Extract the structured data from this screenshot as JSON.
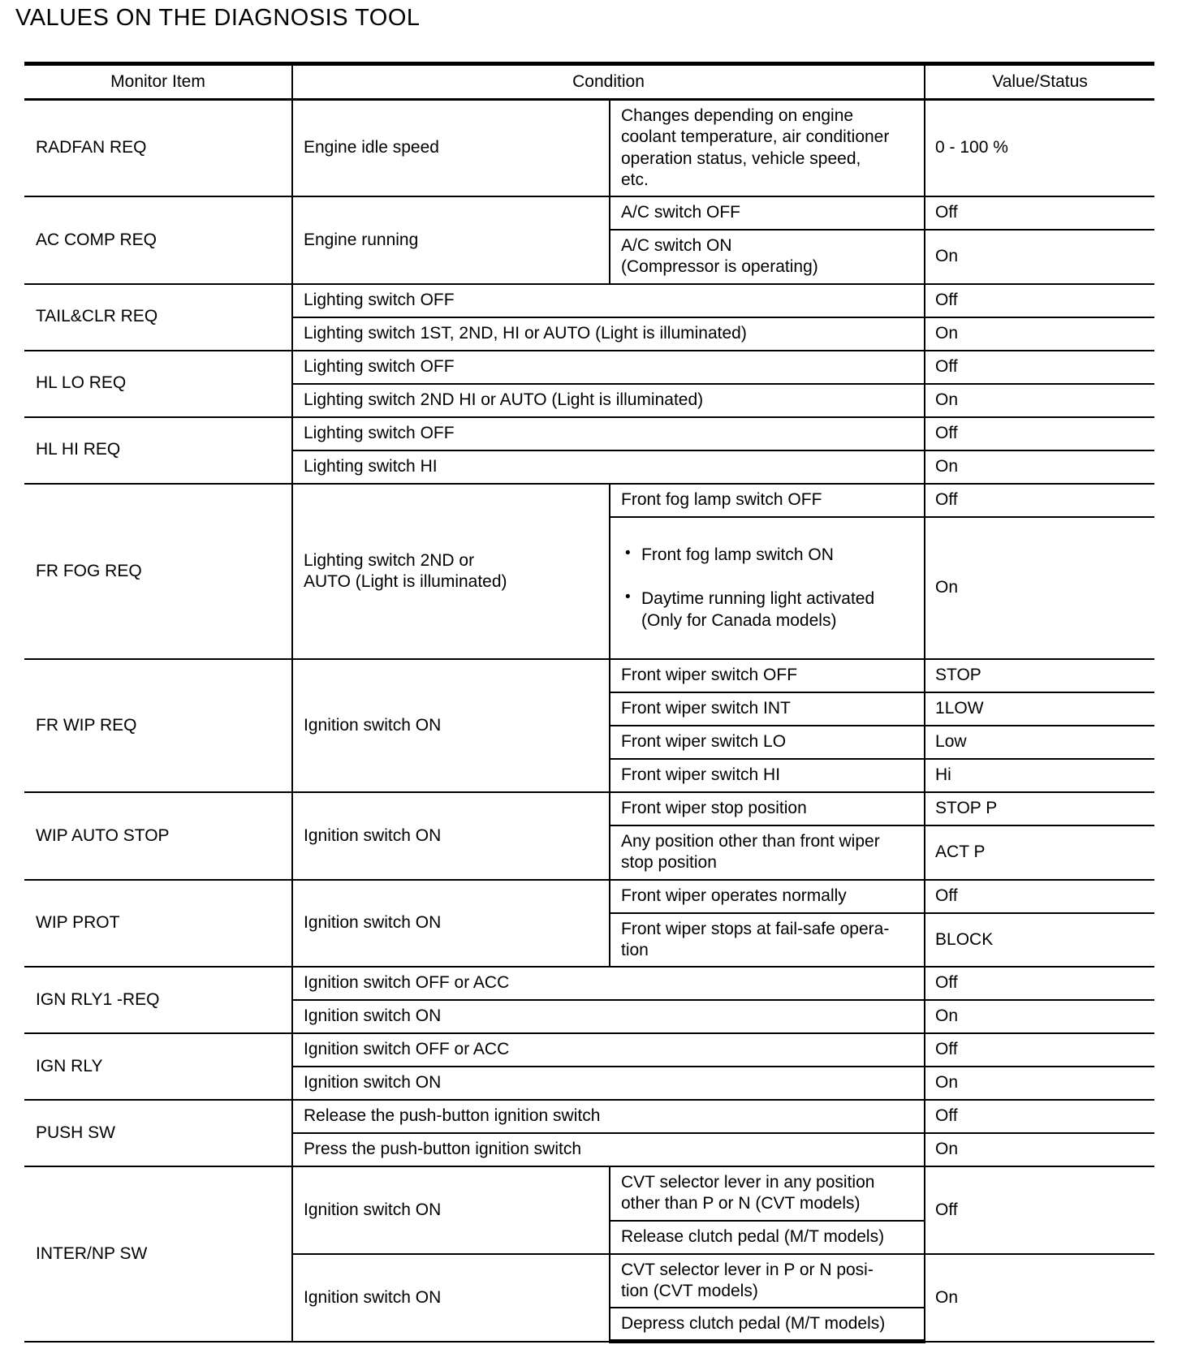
{
  "page": {
    "title": "VALUES ON THE DIAGNOSIS TOOL"
  },
  "table": {
    "header": {
      "monitor_item": "Monitor Item",
      "condition": "Condition",
      "value_status": "Value/Status"
    },
    "groups": [
      {
        "item": "RADFAN REQ",
        "cond_a": "Engine idle speed",
        "cond_b": "Changes depending on engine\ncoolant temperature, air conditioner\noperation status, vehicle speed,\netc.",
        "value": "0 - 100 %"
      },
      {
        "item": "AC COMP REQ",
        "cond_a": "Engine running",
        "rows": [
          {
            "cond": "A/C switch OFF",
            "value": "Off"
          },
          {
            "cond": "A/C switch ON\n(Compressor is operating)",
            "value": "On"
          }
        ]
      },
      {
        "item": "TAIL&CLR REQ",
        "rows": [
          {
            "cond": "Lighting switch OFF",
            "value": "Off"
          },
          {
            "cond": "Lighting switch 1ST, 2ND, HI or AUTO (Light is illuminated)",
            "value": "On"
          }
        ]
      },
      {
        "item": "HL LO REQ",
        "rows": [
          {
            "cond": "Lighting switch OFF",
            "value": "Off"
          },
          {
            "cond": "Lighting switch 2ND HI or AUTO (Light is illuminated)",
            "value": "On"
          }
        ]
      },
      {
        "item": "HL HI REQ",
        "rows": [
          {
            "cond": "Lighting switch OFF",
            "value": "Off"
          },
          {
            "cond": "Lighting switch HI",
            "value": "On"
          }
        ]
      },
      {
        "item": "FR FOG REQ",
        "cond_a": "Lighting switch 2ND or\nAUTO (Light is illuminated)",
        "rows": [
          {
            "cond": "Front fog lamp switch OFF",
            "value": "Off"
          },
          {
            "bullets": [
              "Front fog lamp switch ON",
              "Daytime running light activated\n(Only for Canada models)"
            ],
            "value": "On"
          }
        ]
      },
      {
        "item": "FR WIP REQ",
        "cond_a": "Ignition switch ON",
        "rows": [
          {
            "cond": "Front wiper switch OFF",
            "value": "STOP"
          },
          {
            "cond": "Front wiper switch INT",
            "value": "1LOW"
          },
          {
            "cond": "Front wiper switch LO",
            "value": "Low"
          },
          {
            "cond": "Front wiper switch HI",
            "value": "Hi"
          }
        ]
      },
      {
        "item": "WIP AUTO STOP",
        "cond_a": "Ignition switch ON",
        "rows": [
          {
            "cond": "Front wiper stop position",
            "value": "STOP P"
          },
          {
            "cond": "Any position other than front wiper\nstop position",
            "value": "ACT P"
          }
        ]
      },
      {
        "item": "WIP PROT",
        "cond_a": "Ignition switch ON",
        "rows": [
          {
            "cond": "Front wiper operates normally",
            "value": "Off"
          },
          {
            "cond": "Front wiper stops at fail-safe opera-\ntion",
            "value": "BLOCK"
          }
        ]
      },
      {
        "item": "IGN RLY1 -REQ",
        "rows": [
          {
            "cond": "Ignition switch OFF or ACC",
            "value": "Off"
          },
          {
            "cond": "Ignition switch ON",
            "value": "On"
          }
        ]
      },
      {
        "item": "IGN RLY",
        "rows": [
          {
            "cond": "Ignition switch OFF or ACC",
            "value": "Off"
          },
          {
            "cond": "Ignition switch ON",
            "value": "On"
          }
        ]
      },
      {
        "item": "PUSH SW",
        "rows": [
          {
            "cond": "Release the push-button ignition switch",
            "value": "Off"
          },
          {
            "cond": "Press the push-button ignition switch",
            "value": "On"
          }
        ]
      },
      {
        "item": "INTER/NP SW",
        "blocks": [
          {
            "cond_a": "Ignition switch ON",
            "conds": [
              "CVT selector lever in any position\nother than P or N (CVT models)",
              "Release clutch pedal (M/T models)"
            ],
            "value": "Off"
          },
          {
            "cond_a": "Ignition switch ON",
            "conds": [
              "CVT selector lever in P or N posi-\ntion (CVT models)",
              "Depress clutch pedal (M/T models)"
            ],
            "value": "On"
          }
        ]
      }
    ]
  }
}
